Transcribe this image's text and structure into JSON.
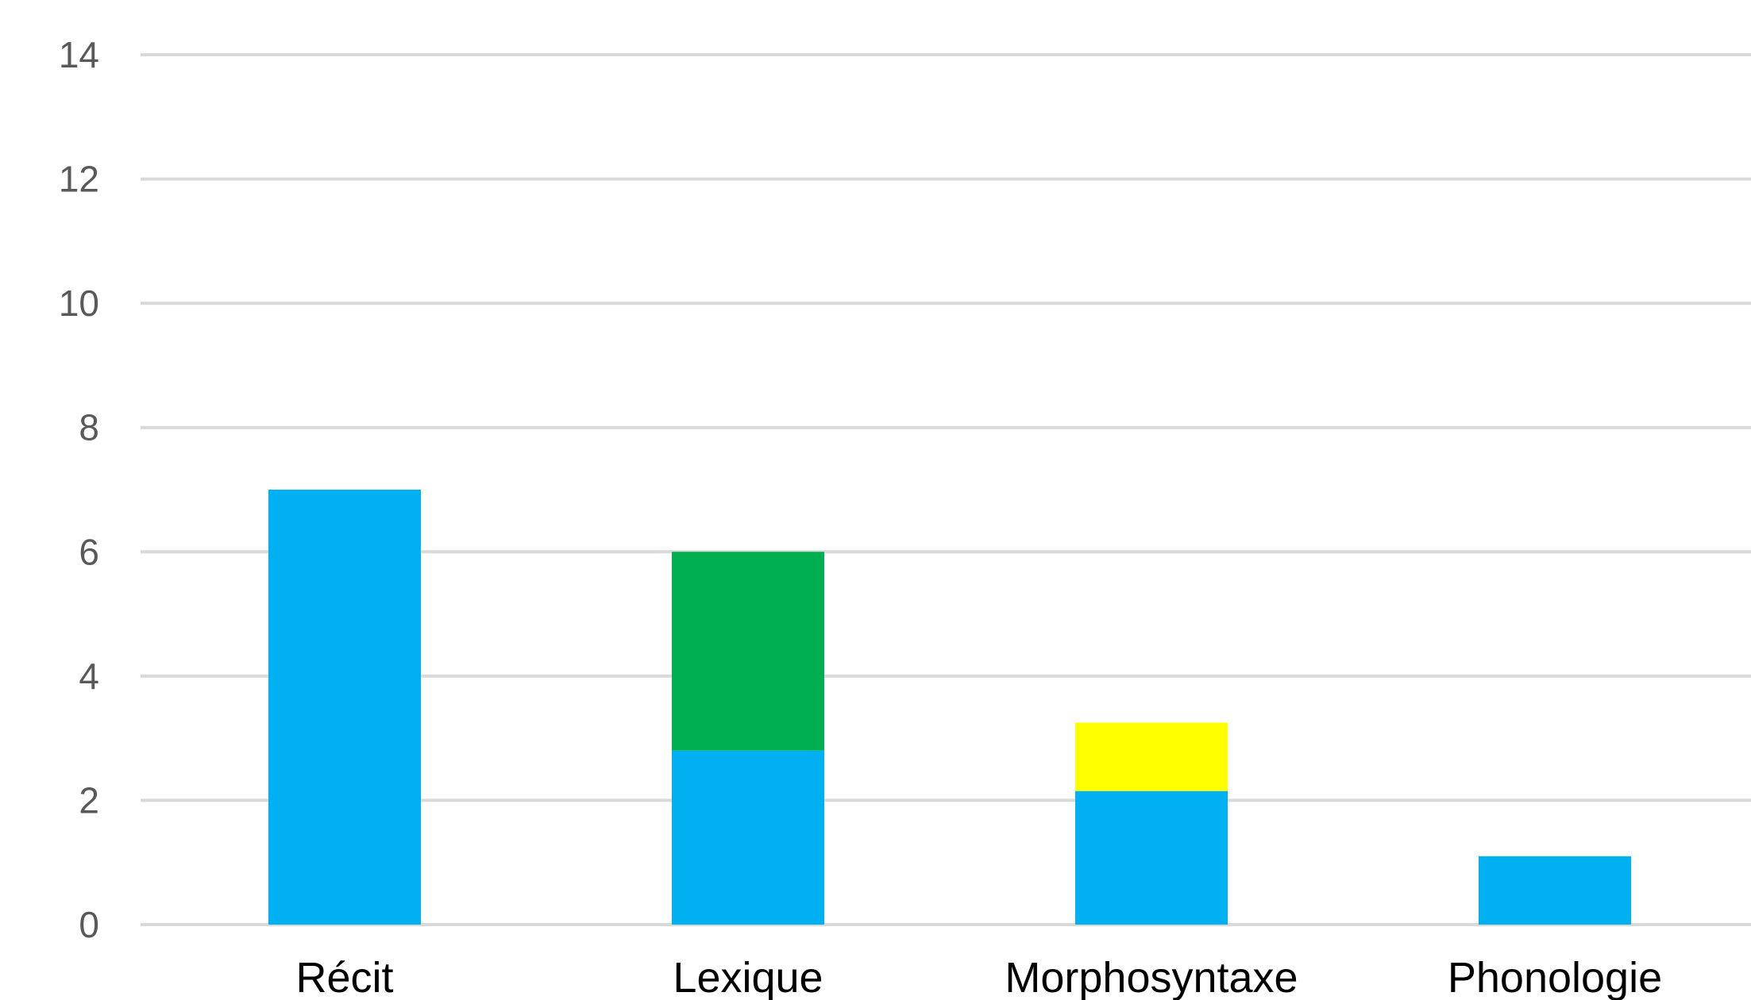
{
  "chart_data": {
    "type": "bar",
    "stacked": true,
    "categories": [
      "Récit",
      "Lexique",
      "Morphosyntaxe",
      "Phonologie"
    ],
    "series": [
      {
        "color": "#00b0f0",
        "values": [
          7,
          2.8,
          2.15,
          1.1
        ]
      },
      {
        "color": "#00b050",
        "values": [
          0,
          3.2,
          0,
          0
        ]
      },
      {
        "color": "#ffff00",
        "values": [
          0,
          0,
          1.1,
          0
        ]
      }
    ],
    "ylim": [
      0,
      14
    ],
    "yticks": [
      "0",
      "2",
      "4",
      "6",
      "8",
      "10",
      "12",
      "14"
    ],
    "grid": true,
    "legend": "none"
  }
}
